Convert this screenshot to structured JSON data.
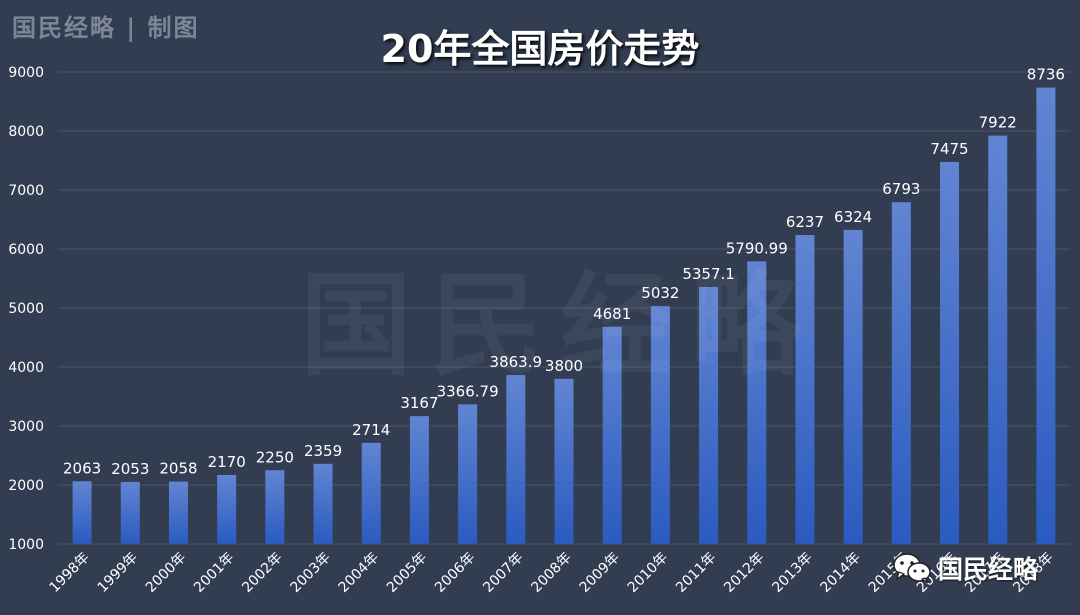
{
  "header": {
    "brand": "国民经略 | 制图",
    "title": "20年全国房价走势"
  },
  "watermark": "国民经略",
  "wechat": {
    "icon": "wechat-icon",
    "label": "国民经略"
  },
  "colors": {
    "background": "#323d51",
    "bar_top": "#6185d2",
    "bar_bottom": "#2b5bc0",
    "grid": "#4a5567",
    "text": "#ffffff"
  },
  "chart_data": {
    "type": "bar",
    "title": "20年全国房价走势",
    "xlabel": "",
    "ylabel": "",
    "categories": [
      "1998年",
      "1999年",
      "2000年",
      "2001年",
      "2002年",
      "2003年",
      "2004年",
      "2005年",
      "2006年",
      "2007年",
      "2008年",
      "2009年",
      "2010年",
      "2011年",
      "2012年",
      "2013年",
      "2014年",
      "2015年",
      "2016年",
      "2017年",
      "2018年"
    ],
    "values": [
      2063,
      2053,
      2058,
      2170,
      2250,
      2359,
      2714,
      3167,
      3366.79,
      3863.9,
      3800,
      4681,
      5032,
      5357.1,
      5790.99,
      6237,
      6324,
      6793,
      7475,
      7922,
      8736
    ],
    "value_labels": [
      "2063",
      "2053",
      "2058",
      "2170",
      "2250",
      "2359",
      "2714",
      "3167",
      "3366.79",
      "3863.9",
      "3800",
      "4681",
      "5032",
      "5357.1",
      "5790.99",
      "6237",
      "6324",
      "6793",
      "7475",
      "7922",
      "8736"
    ],
    "ylim": [
      1000,
      9000
    ],
    "yticks": [
      1000,
      2000,
      3000,
      4000,
      5000,
      6000,
      7000,
      8000,
      9000
    ],
    "grid": true,
    "legend": "none"
  }
}
